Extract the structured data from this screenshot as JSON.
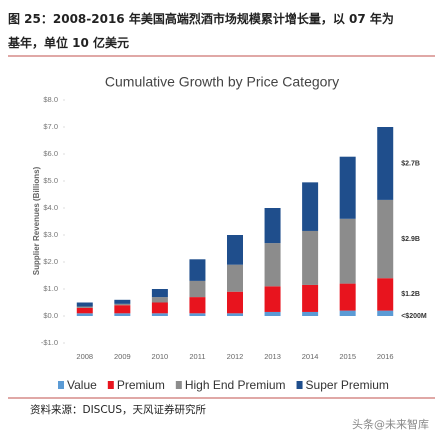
{
  "header": {
    "lines": [
      "图 25：2008-2016 年美国高端烈酒市场规模累计增长量，以 07 年为",
      "基年，单位 10 亿美元"
    ]
  },
  "chart_data": {
    "type": "bar",
    "stacked": true,
    "title": "Cumulative Growth by Price Category",
    "y_label": "Supplier Revenues (Billions)",
    "categories": [
      "2008",
      "2009",
      "2010",
      "2011",
      "2012",
      "2013",
      "2014",
      "2015",
      "2016"
    ],
    "series": [
      {
        "name": "Value",
        "color": "#5b9bd5",
        "values": [
          0.1,
          0.1,
          0.1,
          0.1,
          0.1,
          0.15,
          0.15,
          0.2,
          0.2
        ]
      },
      {
        "name": "Premium",
        "color": "#e8141e",
        "values": [
          0.2,
          0.3,
          0.4,
          0.6,
          0.8,
          0.95,
          1.0,
          1.0,
          1.2
        ]
      },
      {
        "name": "High End Premium",
        "color": "#8c8c8c",
        "values": [
          0.05,
          0.05,
          0.2,
          0.6,
          1.0,
          1.6,
          2.0,
          2.4,
          2.9
        ]
      },
      {
        "name": "Super Premium",
        "color": "#1f4e8c",
        "values": [
          0.15,
          0.15,
          0.3,
          0.8,
          1.1,
          1.3,
          1.8,
          2.3,
          2.7
        ]
      }
    ],
    "ylim": [
      -1,
      8
    ],
    "yticks": [
      {
        "value": -1,
        "label": "-$1.0"
      },
      {
        "value": 0,
        "label": "$0.0"
      },
      {
        "value": 1,
        "label": "$1.0"
      },
      {
        "value": 2,
        "label": "$2.0"
      },
      {
        "value": 3,
        "label": "$3.0"
      },
      {
        "value": 4,
        "label": "$4.0"
      },
      {
        "value": 5,
        "label": "$5.0"
      },
      {
        "value": 6,
        "label": "$6.0"
      },
      {
        "value": 7,
        "label": "$7.0"
      },
      {
        "value": 8,
        "label": "$8.0"
      }
    ],
    "annotations": [
      {
        "series": 3,
        "label": "$2.7B"
      },
      {
        "series": 2,
        "label": "$2.9B"
      },
      {
        "series": 1,
        "label": "$1.2B"
      },
      {
        "series": 0,
        "label": "<$200M"
      }
    ]
  },
  "footer": {
    "source": "资料来源：DISCUS，天风证券研究所",
    "watermark": "头条@未来智库"
  }
}
